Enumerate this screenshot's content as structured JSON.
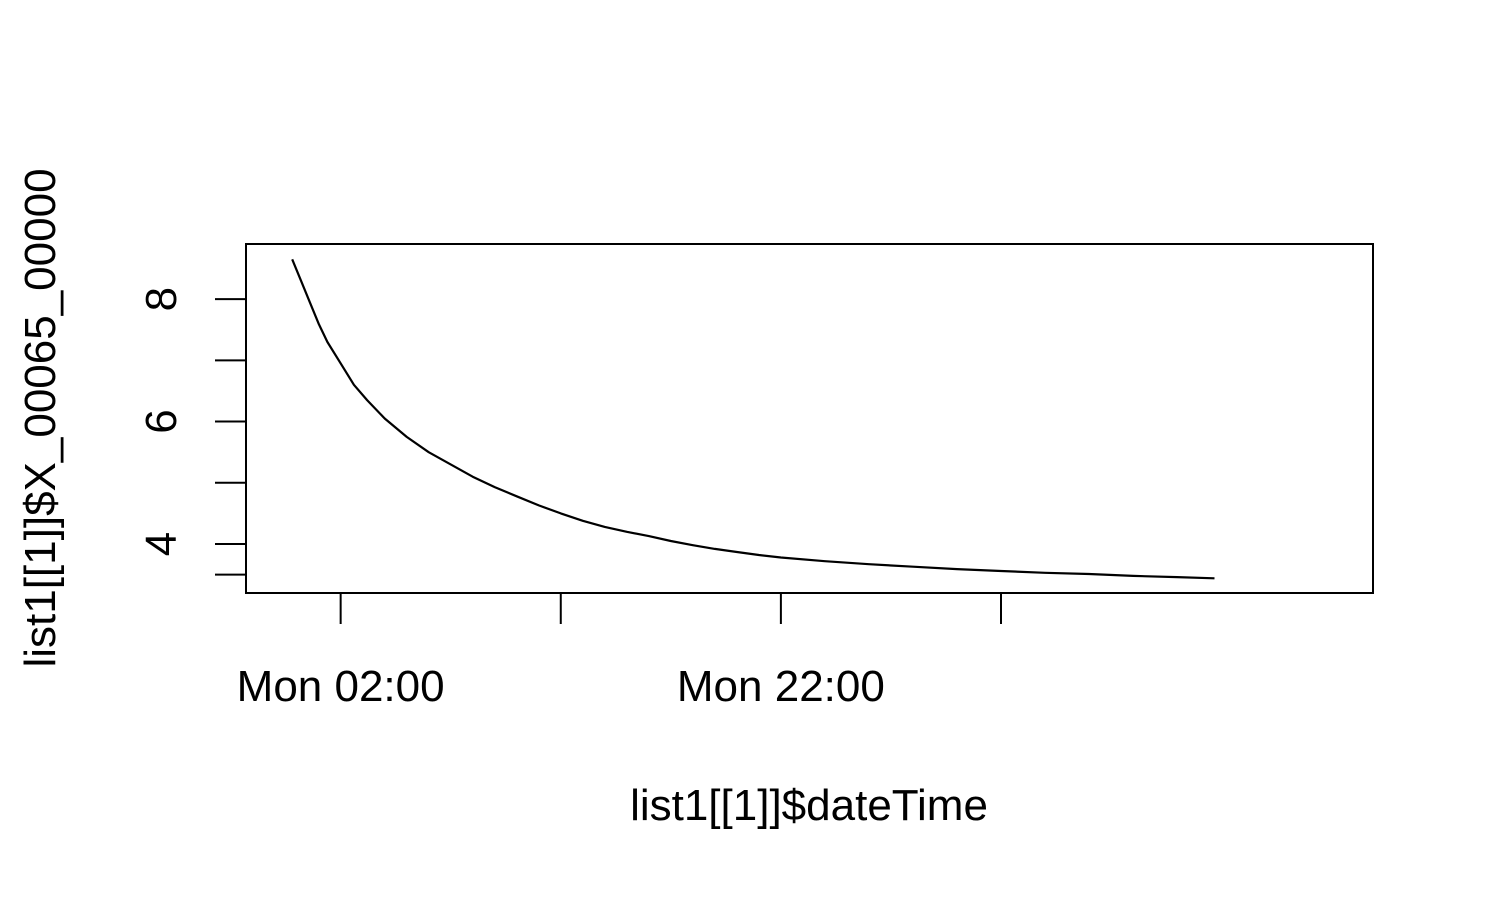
{
  "chart_data": {
    "type": "line",
    "title": "",
    "xlabel": "list1[[1]]$dateTime",
    "ylabel": "list1[[1]]$X_00065_00000",
    "x_unit": "hours",
    "xlim": [
      -4.3,
      46.9
    ],
    "ylim": [
      3.2,
      8.9
    ],
    "x_major_ticks": [
      {
        "value": 0,
        "label": "Mon 02:00"
      },
      {
        "value": 10,
        "label": ""
      },
      {
        "value": 20,
        "label": "Mon 22:00"
      },
      {
        "value": 30,
        "label": ""
      }
    ],
    "y_ticks": [
      {
        "value": 3.5,
        "label": ""
      },
      {
        "value": 4,
        "label": "4"
      },
      {
        "value": 5,
        "label": ""
      },
      {
        "value": 6,
        "label": "6"
      },
      {
        "value": 7,
        "label": ""
      },
      {
        "value": 8,
        "label": "8"
      }
    ],
    "series": [
      {
        "name": "X_00065_00000",
        "x": [
          -2.2,
          -1.8,
          -1.4,
          -1.0,
          -0.6,
          0.0,
          0.6,
          1.2,
          2.0,
          3.0,
          4.0,
          5.0,
          6.0,
          7.0,
          8.0,
          9.0,
          10.0,
          11.0,
          12.0,
          13.0,
          14.0,
          15.0,
          16.0,
          17.0,
          18.0,
          19.0,
          20.0,
          22.0,
          24.0,
          26.0,
          28.0,
          30.0,
          32.0,
          34.0,
          36.0,
          38.0,
          39.7
        ],
        "values": [
          8.65,
          8.3,
          7.95,
          7.6,
          7.3,
          6.95,
          6.6,
          6.35,
          6.05,
          5.75,
          5.5,
          5.3,
          5.1,
          4.93,
          4.78,
          4.63,
          4.5,
          4.38,
          4.28,
          4.2,
          4.13,
          4.05,
          3.98,
          3.92,
          3.87,
          3.82,
          3.78,
          3.72,
          3.67,
          3.63,
          3.59,
          3.56,
          3.53,
          3.51,
          3.48,
          3.46,
          3.44
        ]
      }
    ]
  }
}
